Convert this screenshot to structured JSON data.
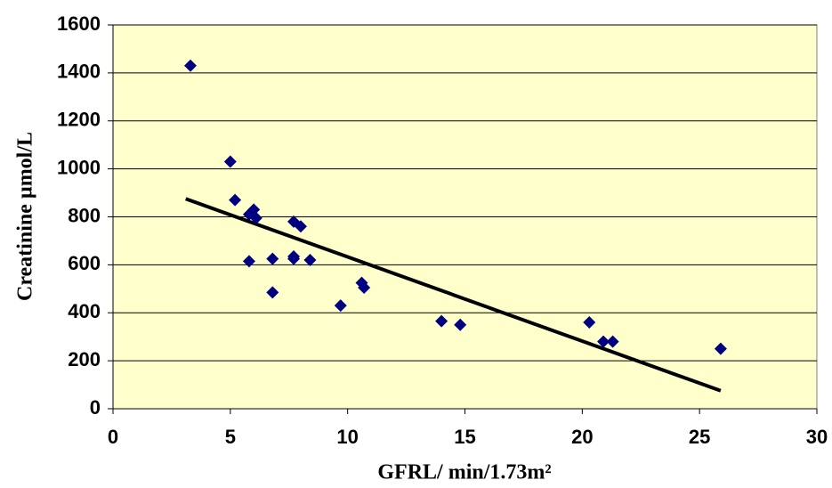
{
  "chart_data": {
    "type": "scatter",
    "x_label": "GFRL/ min/1.73m²",
    "y_label": "Creatinine µmol/L",
    "xlim": [
      0,
      30
    ],
    "xticks": [
      0,
      5,
      10,
      15,
      20,
      25,
      30
    ],
    "ylim": [
      0,
      1600
    ],
    "yticks": [
      0,
      200,
      400,
      600,
      800,
      1000,
      1200,
      1400,
      1600
    ],
    "grid": true,
    "background": "#ffffcc",
    "series": [
      {
        "color": "#000080",
        "x": [
          3.3,
          5.0,
          5.2,
          5.8,
          6.0,
          6.1,
          5.8,
          6.8,
          6.8,
          7.7,
          8.0,
          7.7,
          7.7,
          8.4,
          9.7,
          10.6,
          10.7,
          14.0,
          14.8,
          20.3,
          20.9,
          21.3,
          25.9
        ],
        "values": [
          1430,
          1030,
          870,
          810,
          830,
          795,
          615,
          625,
          485,
          780,
          760,
          635,
          625,
          620,
          430,
          525,
          505,
          365,
          350,
          360,
          280,
          280,
          250
        ]
      }
    ],
    "trendline": {
      "color": "#000000",
      "x": [
        3.1,
        25.9
      ],
      "values": [
        875,
        75
      ]
    }
  }
}
